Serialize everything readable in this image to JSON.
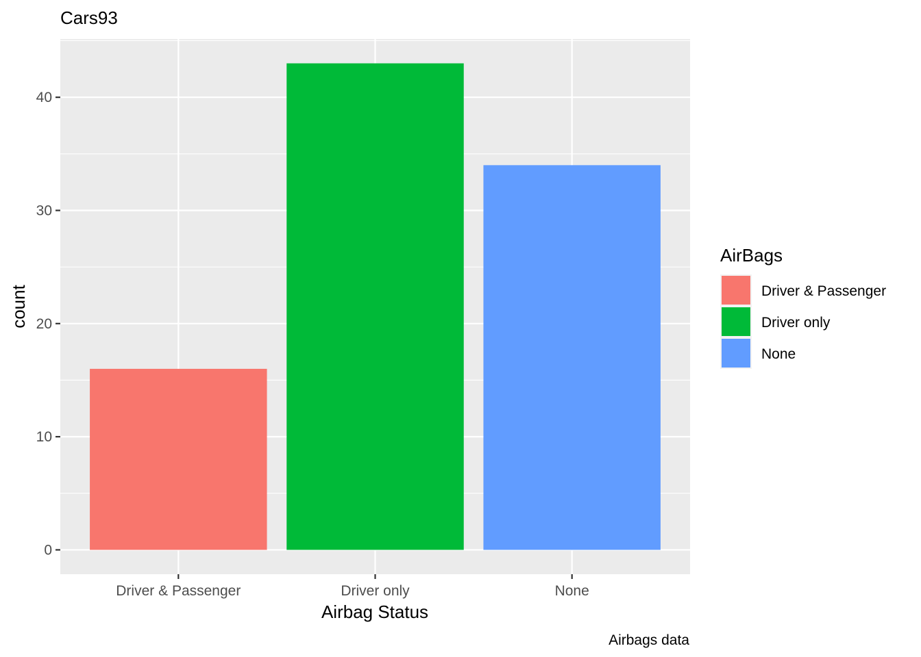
{
  "chart_data": {
    "type": "bar",
    "title": "Cars93",
    "xlabel": "Airbag Status",
    "ylabel": "count",
    "caption": "Airbags data",
    "categories": [
      "Driver & Passenger",
      "Driver only",
      "None"
    ],
    "values": [
      16,
      43,
      34
    ],
    "colors": [
      "#F8766D",
      "#00BA38",
      "#619CFF"
    ],
    "ylim": [
      -2.15,
      45.15
    ],
    "y_ticks": [
      0,
      10,
      20,
      30,
      40
    ],
    "y_tick_labels": [
      "0",
      "10",
      "20",
      "30",
      "40"
    ],
    "grid": true,
    "legend": {
      "title": "AirBags",
      "placement": "right",
      "entries": [
        "Driver & Passenger",
        "Driver only",
        "None"
      ]
    }
  }
}
